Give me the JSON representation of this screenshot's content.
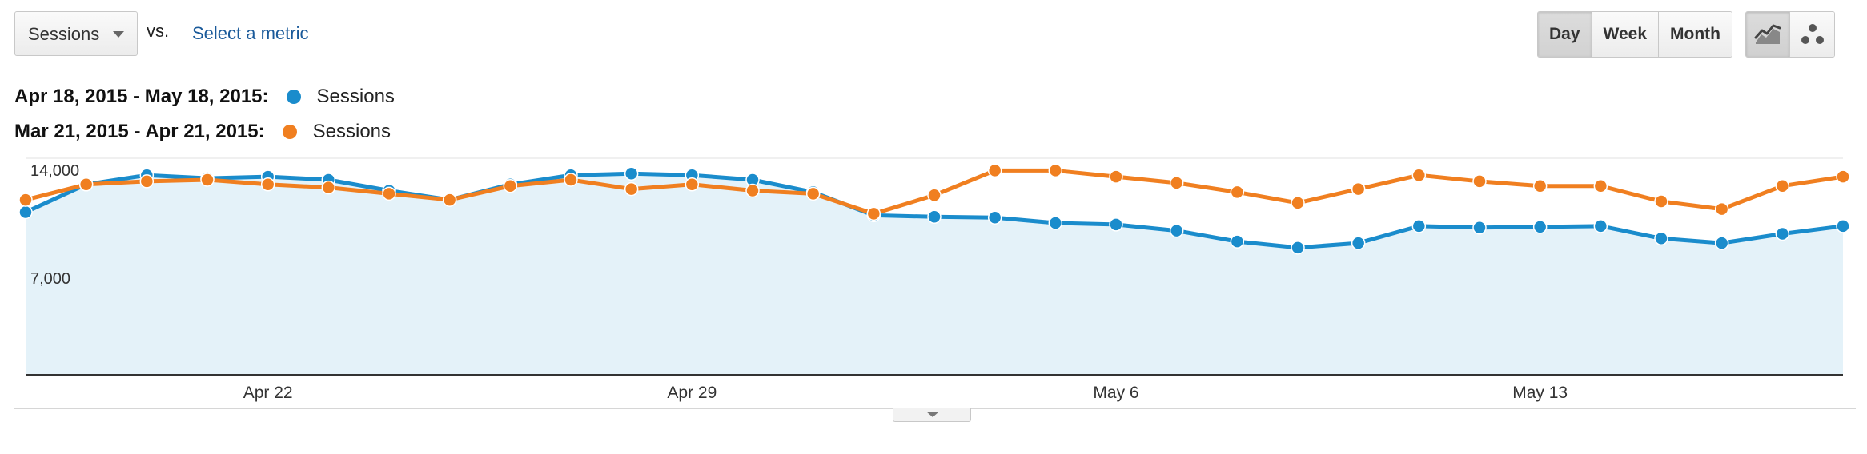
{
  "controls": {
    "metric_select_label": "Sessions",
    "vs_label": "vs.",
    "select_metric_label": "Select a metric",
    "periods": [
      {
        "label": "Day",
        "active": true
      },
      {
        "label": "Week",
        "active": false
      },
      {
        "label": "Month",
        "active": false
      }
    ],
    "chart_types": [
      {
        "icon": "line-chart-icon",
        "active": true
      },
      {
        "icon": "motion-chart-icon",
        "active": false
      }
    ]
  },
  "legend": [
    {
      "range": "Apr 18, 2015 - May 18, 2015:",
      "series": "Sessions",
      "color": "#1a8ccc"
    },
    {
      "range": "Mar 21, 2015 - Apr 21, 2015:",
      "series": "Sessions",
      "color": "#f07f20"
    }
  ],
  "chart_data": {
    "type": "line",
    "title": "",
    "xlabel": "",
    "ylabel": "",
    "x": [
      "Apr 18",
      "Apr 19",
      "Apr 20",
      "Apr 21",
      "Apr 22",
      "Apr 23",
      "Apr 24",
      "Apr 25",
      "Apr 26",
      "Apr 27",
      "Apr 28",
      "Apr 29",
      "Apr 30",
      "May 1",
      "May 2",
      "May 3",
      "May 4",
      "May 5",
      "May 6",
      "May 7",
      "May 8",
      "May 9",
      "May 10",
      "May 11",
      "May 12",
      "May 13",
      "May 14",
      "May 15",
      "May 16",
      "May 17",
      "May 18"
    ],
    "x_ticks": [
      "Apr 22",
      "Apr 29",
      "May 6",
      "May 13"
    ],
    "y_ticks": [
      "14,000",
      "7,000"
    ],
    "y_tick_values": [
      14000,
      7000
    ],
    "ylim": [
      0,
      14000
    ],
    "grid": true,
    "series": [
      {
        "name": "Sessions",
        "period": "Apr 18, 2015 - May 18, 2015",
        "color": "#1a8ccc",
        "fill": "#e4f2f9",
        "values": [
          10500,
          12300,
          12900,
          12700,
          12800,
          12600,
          11900,
          11300,
          12300,
          12900,
          13000,
          12900,
          12600,
          11800,
          10300,
          10200,
          10150,
          9800,
          9700,
          9300,
          8600,
          8200,
          8500,
          9600,
          9500,
          9550,
          9600,
          8800,
          8500,
          9100,
          9600
        ]
      },
      {
        "name": "Sessions",
        "period": "Mar 21, 2015 - Apr 21, 2015",
        "color": "#f07f20",
        "values": [
          11300,
          12300,
          12500,
          12600,
          12300,
          12100,
          11700,
          11300,
          12200,
          12600,
          12000,
          12300,
          11900,
          11700,
          10400,
          11600,
          13200,
          13200,
          12800,
          12400,
          11800,
          11100,
          12000,
          12900,
          12500,
          12200,
          12200,
          11200,
          10700,
          12200,
          12800
        ]
      }
    ]
  }
}
